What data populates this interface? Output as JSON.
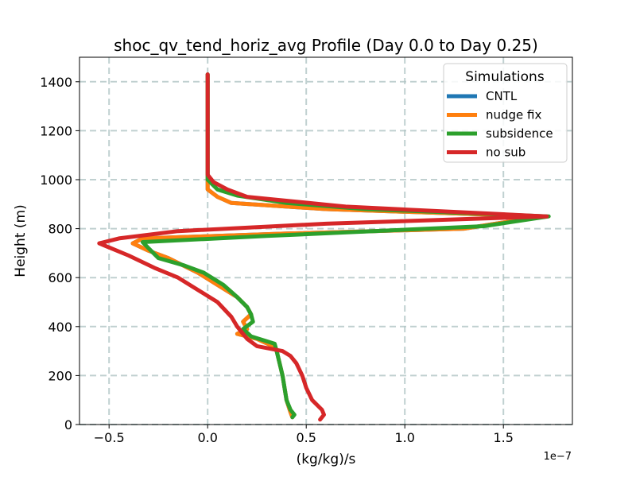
{
  "chart_data": {
    "type": "line",
    "title": "shoc_qv_tend_horiz_avg Profile (Day 0.0 to Day 0.25)",
    "xlabel": "(kg/kg)/s",
    "ylabel": "Height (m)",
    "x_offset_label": "1e−7",
    "xlim": [
      -0.65,
      1.85
    ],
    "ylim": [
      0,
      1500
    ],
    "xticks": [
      -0.5,
      0.0,
      0.5,
      1.0,
      1.5
    ],
    "xtick_labels": [
      "−0.5",
      "0.0",
      "0.5",
      "1.0",
      "1.5"
    ],
    "yticks": [
      0,
      200,
      400,
      600,
      800,
      1000,
      1200,
      1400
    ],
    "ytick_labels": [
      "0",
      "200",
      "400",
      "600",
      "800",
      "1000",
      "1200",
      "1400"
    ],
    "grid": true,
    "legend": {
      "title": "Simulations",
      "position": "top-right"
    },
    "series": [
      {
        "name": "CNTL",
        "color": "#1f77b4",
        "points": [
          [
            0.43,
            30
          ],
          [
            0.42,
            50
          ],
          [
            0.4,
            100
          ],
          [
            0.38,
            200
          ],
          [
            0.35,
            300
          ],
          [
            0.33,
            320
          ],
          [
            0.25,
            350
          ],
          [
            0.15,
            370
          ],
          [
            0.2,
            390
          ],
          [
            0.18,
            420
          ],
          [
            0.22,
            450
          ],
          [
            0.2,
            480
          ],
          [
            0.15,
            520
          ],
          [
            0.05,
            570
          ],
          [
            -0.05,
            620
          ],
          [
            -0.2,
            680
          ],
          [
            -0.3,
            710
          ],
          [
            -0.38,
            740
          ],
          [
            -0.33,
            760
          ],
          [
            0.4,
            780
          ],
          [
            1.3,
            800
          ],
          [
            1.7,
            850
          ],
          [
            0.6,
            880
          ],
          [
            0.12,
            905
          ],
          [
            0.05,
            930
          ],
          [
            0.0,
            960
          ],
          [
            0.0,
            1000
          ],
          [
            0.0,
            1100
          ],
          [
            0.0,
            1200
          ],
          [
            0.0,
            1300
          ],
          [
            0.0,
            1430
          ]
        ]
      },
      {
        "name": "nudge fix",
        "color": "#ff7f0e",
        "points": [
          [
            0.43,
            30
          ],
          [
            0.42,
            50
          ],
          [
            0.4,
            100
          ],
          [
            0.38,
            200
          ],
          [
            0.35,
            300
          ],
          [
            0.33,
            320
          ],
          [
            0.25,
            350
          ],
          [
            0.15,
            370
          ],
          [
            0.2,
            390
          ],
          [
            0.18,
            420
          ],
          [
            0.22,
            450
          ],
          [
            0.2,
            480
          ],
          [
            0.15,
            520
          ],
          [
            0.05,
            570
          ],
          [
            -0.05,
            620
          ],
          [
            -0.2,
            680
          ],
          [
            -0.3,
            710
          ],
          [
            -0.38,
            740
          ],
          [
            -0.33,
            760
          ],
          [
            0.4,
            780
          ],
          [
            1.3,
            800
          ],
          [
            1.7,
            850
          ],
          [
            0.6,
            880
          ],
          [
            0.12,
            905
          ],
          [
            0.05,
            930
          ],
          [
            0.0,
            960
          ],
          [
            0.0,
            1000
          ],
          [
            0.0,
            1100
          ],
          [
            0.0,
            1200
          ],
          [
            0.0,
            1300
          ],
          [
            0.0,
            1430
          ]
        ]
      },
      {
        "name": "subsidence",
        "color": "#2ca02c",
        "points": [
          [
            0.43,
            30
          ],
          [
            0.44,
            40
          ],
          [
            0.42,
            60
          ],
          [
            0.4,
            100
          ],
          [
            0.38,
            200
          ],
          [
            0.35,
            300
          ],
          [
            0.34,
            330
          ],
          [
            0.22,
            360
          ],
          [
            0.18,
            390
          ],
          [
            0.23,
            420
          ],
          [
            0.22,
            450
          ],
          [
            0.2,
            480
          ],
          [
            0.15,
            520
          ],
          [
            0.08,
            570
          ],
          [
            -0.02,
            620
          ],
          [
            -0.12,
            650
          ],
          [
            -0.25,
            680
          ],
          [
            -0.3,
            720
          ],
          [
            -0.33,
            745
          ],
          [
            0.3,
            770
          ],
          [
            1.4,
            810
          ],
          [
            1.73,
            850
          ],
          [
            0.8,
            880
          ],
          [
            0.4,
            905
          ],
          [
            0.15,
            935
          ],
          [
            0.05,
            960
          ],
          [
            0.0,
            1000
          ],
          [
            0.0,
            1100
          ],
          [
            0.0,
            1200
          ],
          [
            0.0,
            1300
          ],
          [
            0.0,
            1430
          ]
        ]
      },
      {
        "name": "no sub",
        "color": "#d62728",
        "points": [
          [
            0.57,
            20
          ],
          [
            0.59,
            40
          ],
          [
            0.58,
            60
          ],
          [
            0.53,
            100
          ],
          [
            0.5,
            150
          ],
          [
            0.48,
            200
          ],
          [
            0.45,
            250
          ],
          [
            0.42,
            280
          ],
          [
            0.38,
            300
          ],
          [
            0.25,
            320
          ],
          [
            0.2,
            350
          ],
          [
            0.18,
            370
          ],
          [
            0.15,
            400
          ],
          [
            0.12,
            440
          ],
          [
            0.05,
            500
          ],
          [
            -0.05,
            550
          ],
          [
            -0.15,
            600
          ],
          [
            -0.27,
            640
          ],
          [
            -0.4,
            690
          ],
          [
            -0.55,
            740
          ],
          [
            -0.45,
            760
          ],
          [
            -0.15,
            790
          ],
          [
            0.6,
            820
          ],
          [
            1.72,
            850
          ],
          [
            0.7,
            890
          ],
          [
            0.2,
            930
          ],
          [
            0.1,
            960
          ],
          [
            0.03,
            990
          ],
          [
            0.0,
            1020
          ],
          [
            0.0,
            1100
          ],
          [
            0.0,
            1200
          ],
          [
            0.0,
            1300
          ],
          [
            0.0,
            1430
          ]
        ]
      }
    ]
  }
}
